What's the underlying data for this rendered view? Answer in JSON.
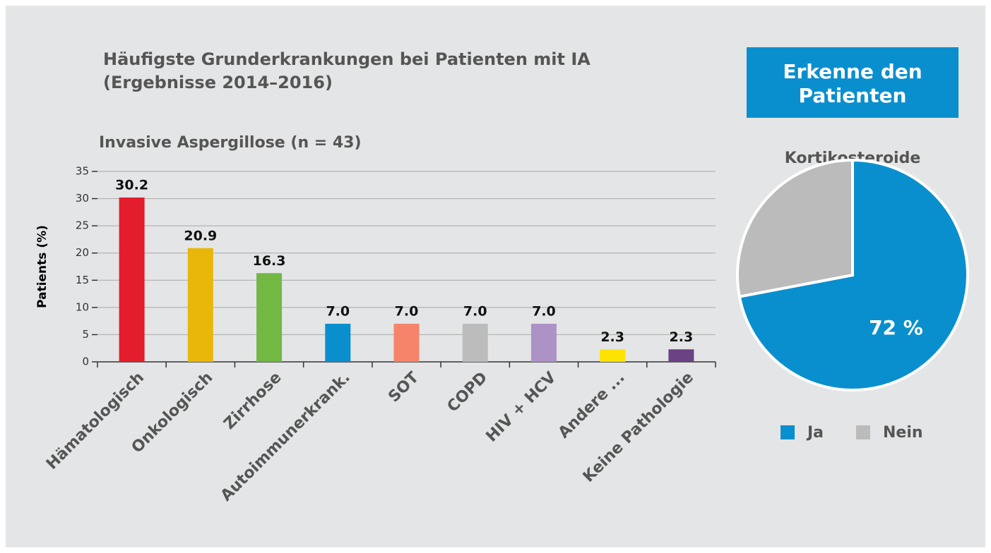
{
  "header": {
    "title": [
      "Häufigste Grunderkrankungen bei Patienten mit IA",
      "(Ergebnisse 2014–2016)"
    ],
    "button": [
      "Erkenne den",
      "Patienten"
    ]
  },
  "chart_data": [
    {
      "type": "bar",
      "title": "Invasive Aspergillose (n = 43)",
      "ylabel": "Patients (%)",
      "categories": [
        "Hämatologisch",
        "Onkologisch",
        "Zirrhose",
        "Autoimmunerkrank.",
        "SOT",
        "COPD",
        "HIV + HCV",
        "Andere ...",
        "Keine Pathologie"
      ],
      "values": [
        30.2,
        20.9,
        16.3,
        7.0,
        7.0,
        7.0,
        7.0,
        2.3,
        2.3
      ],
      "value_labels": [
        "30.2",
        "20.9",
        "16.3",
        "7.0",
        "7.0",
        "7.0",
        "7.0",
        "2.3",
        "2.3"
      ],
      "colors": [
        "#e31d2b",
        "#e8b709",
        "#72b843",
        "#0a8fce",
        "#f5846a",
        "#bcbcbc",
        "#ad92c6",
        "#fde400",
        "#6a4383"
      ],
      "ylim": [
        0,
        35
      ],
      "yticks": [
        0,
        5,
        10,
        15,
        20,
        25,
        30,
        35
      ],
      "grid": true
    },
    {
      "type": "pie",
      "title": "Kortikosteroide",
      "categories": [
        "Ja",
        "Nein"
      ],
      "values": [
        72,
        28
      ],
      "value_labels": [
        "72 %",
        null
      ],
      "colors": [
        "#0a8fce",
        "#bbbbbb"
      ],
      "legend": "bottom"
    }
  ]
}
